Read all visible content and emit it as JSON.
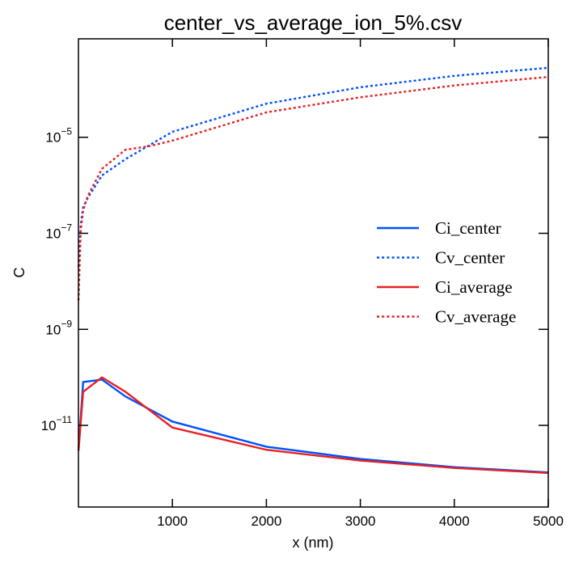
{
  "chart_data": {
    "type": "line",
    "title": "center_vs_average_ion_5%.csv",
    "xlabel": "x (nm)",
    "ylabel": "C",
    "xlim": [
      0,
      5000
    ],
    "ylim_log10": [
      -12.7,
      -2.95
    ],
    "yscale": "log",
    "x_ticks": [
      {
        "value": 1000,
        "label": "1000"
      },
      {
        "value": 2000,
        "label": "2000"
      },
      {
        "value": 3000,
        "label": "3000"
      },
      {
        "value": 4000,
        "label": "4000"
      },
      {
        "value": 5000,
        "label": "5000"
      }
    ],
    "y_ticks": [
      {
        "log10": -5,
        "base": "10",
        "exp": "−5"
      },
      {
        "log10": -7,
        "base": "10",
        "exp": "−7"
      },
      {
        "log10": -9,
        "base": "10",
        "exp": "−9"
      },
      {
        "log10": -11,
        "base": "10",
        "exp": "−11"
      }
    ],
    "grid": false,
    "legend_position": "right-middle",
    "series": [
      {
        "name": "Ci_center",
        "color": "#0050ff",
        "dash": "solid",
        "x": [
          1,
          50,
          250,
          500,
          1000,
          2000,
          3000,
          4000,
          5000
        ],
        "y": [
          3e-12,
          8e-11,
          9e-11,
          4e-11,
          1.2e-11,
          3.6e-12,
          2e-12,
          1.35e-12,
          1.05e-12
        ]
      },
      {
        "name": "Cv_center",
        "color": "#0050ff",
        "dash": "dotted",
        "x": [
          1,
          25,
          50,
          100,
          250,
          500,
          1000,
          2000,
          3000,
          4000,
          5000
        ],
        "y": [
          2e-08,
          1.5e-07,
          3.5e-07,
          5.5e-07,
          1.6e-06,
          3.5e-06,
          1.3e-05,
          5e-05,
          0.00011,
          0.00019,
          0.00028
        ]
      },
      {
        "name": "Ci_average",
        "color": "#e82020",
        "dash": "solid",
        "x": [
          1,
          50,
          250,
          500,
          1000,
          2000,
          3000,
          4000,
          5000
        ],
        "y": [
          3e-12,
          5e-11,
          1e-10,
          5e-11,
          9e-12,
          3.1e-12,
          1.85e-12,
          1.3e-12,
          1.02e-12
        ]
      },
      {
        "name": "Cv_average",
        "color": "#e82020",
        "dash": "dotted",
        "x": [
          1,
          25,
          50,
          100,
          250,
          500,
          750,
          1000,
          2000,
          3000,
          4000,
          5000
        ],
        "y": [
          4e-09,
          1.2e-07,
          3e-07,
          6e-07,
          2.2e-06,
          5.5e-06,
          6.5e-06,
          8.5e-06,
          3.3e-05,
          6.8e-05,
          0.00012,
          0.00018
        ]
      }
    ]
  }
}
